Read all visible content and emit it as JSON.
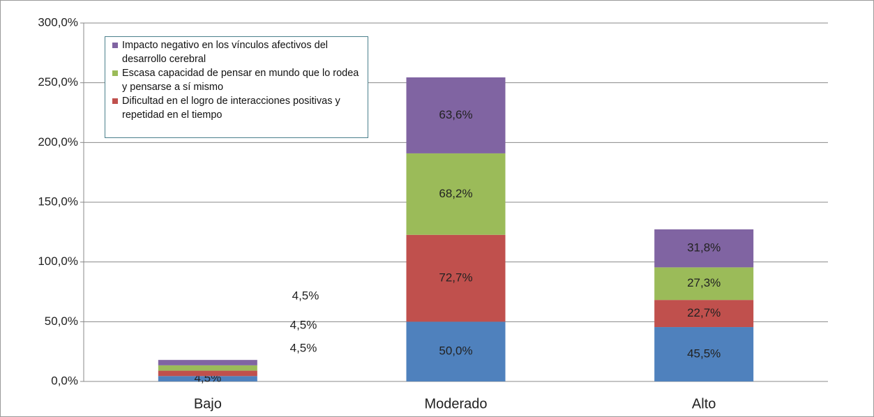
{
  "chart_data": {
    "type": "bar",
    "stacked": true,
    "categories": [
      "Bajo",
      "Moderado",
      "Alto"
    ],
    "series": [
      {
        "color": "#4f81bd",
        "values": [
          4.5,
          50.0,
          45.5
        ],
        "value_labels": [
          "4,5%",
          "50,0%",
          "45,5%"
        ]
      },
      {
        "name": "Dificultad en el logro de interacciones positivas y repetidad en el tiempo",
        "color": "#c0504d",
        "values": [
          4.5,
          72.7,
          22.7
        ],
        "value_labels": [
          "4,5%",
          "72,7%",
          "22,7%"
        ]
      },
      {
        "name": "Escasa capacidad de pensar en mundo que lo rodea y pensarse a sí mismo",
        "color": "#9bbb59",
        "values": [
          4.5,
          68.2,
          27.3
        ],
        "value_labels": [
          "4,5%",
          "68,2%",
          "27,3%"
        ]
      },
      {
        "name": "Impacto negativo en los vínculos afectivos del desarrollo cerebral",
        "color": "#8064a2",
        "values": [
          4.5,
          63.6,
          31.8
        ],
        "value_labels": [
          "4,5%",
          "63,6%",
          "31,8%"
        ]
      }
    ],
    "ylim": [
      0,
      300
    ],
    "yticks": [
      {
        "value": 0,
        "label": "0,0%"
      },
      {
        "value": 50,
        "label": "50,0%"
      },
      {
        "value": 100,
        "label": "100,0%"
      },
      {
        "value": 150,
        "label": "150,0%"
      },
      {
        "value": 200,
        "label": "200,0%"
      },
      {
        "value": 250,
        "label": "250,0%"
      },
      {
        "value": 300,
        "label": "300,0%"
      }
    ],
    "grid": true
  }
}
